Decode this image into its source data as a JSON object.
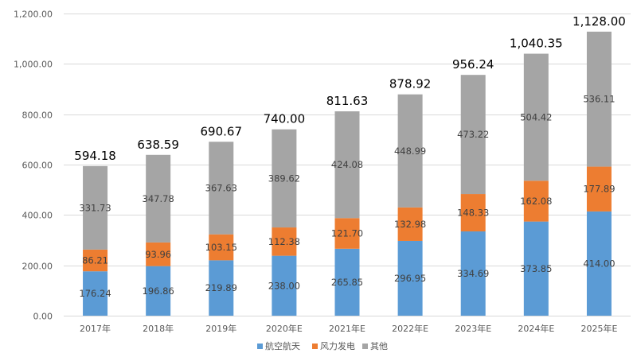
{
  "chart_data": {
    "type": "bar",
    "stacked": true,
    "title": "",
    "xlabel": "",
    "ylabel": "",
    "categories": [
      "2017年",
      "2018年",
      "2019年",
      "2020年E",
      "2021年E",
      "2022年E",
      "2023年E",
      "2024年E",
      "2025年E"
    ],
    "series": [
      {
        "name": "航空航天",
        "color": "#5B9BD5",
        "values": [
          176.24,
          196.86,
          219.89,
          238.0,
          265.85,
          296.95,
          334.69,
          373.85,
          414.0
        ]
      },
      {
        "name": "风力发电",
        "color": "#ED7D31",
        "values": [
          86.21,
          93.96,
          103.15,
          112.38,
          121.7,
          132.98,
          148.33,
          162.08,
          177.89
        ]
      },
      {
        "name": "其他",
        "color": "#A5A5A5",
        "values": [
          331.73,
          347.78,
          367.63,
          389.62,
          424.08,
          448.99,
          473.22,
          504.42,
          536.11
        ]
      }
    ],
    "totals": [
      "594.18",
      "638.59",
      "690.67",
      "740.00",
      "811.63",
      "878.92",
      "956.24",
      "1,040.35",
      "1,128.00"
    ],
    "segment_labels": [
      [
        "176.24",
        "196.86",
        "219.89",
        "238.00",
        "265.85",
        "296.95",
        "334.69",
        "373.85",
        "414.00"
      ],
      [
        "86.21",
        "93.96",
        "103.15",
        "112.38",
        "121.70",
        "132.98",
        "148.33",
        "162.08",
        "177.89"
      ],
      [
        "331.73",
        "347.78",
        "367.63",
        "389.62",
        "424.08",
        "448.99",
        "473.22",
        "504.42",
        "536.11"
      ]
    ],
    "ylim": [
      0,
      1200
    ],
    "yticks": [
      0,
      200,
      400,
      600,
      800,
      1000,
      1200
    ],
    "ytick_labels": [
      "0.00",
      "200.00",
      "400.00",
      "600.00",
      "800.00",
      "1,000.00",
      "1,200.00"
    ],
    "grid": true,
    "legend_position": "bottom"
  }
}
